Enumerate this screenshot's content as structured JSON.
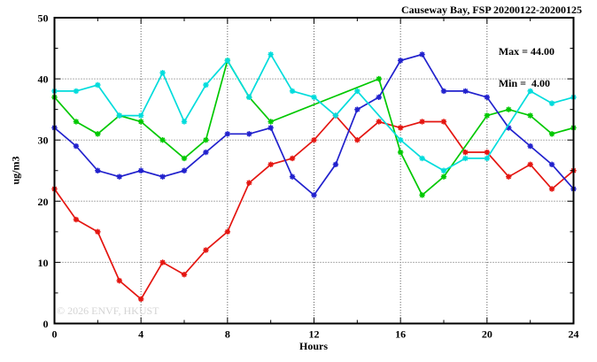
{
  "annotation": {
    "max_label": "Max = 44.00",
    "min_label": "Min =  4.00"
  },
  "watermark": "© 2026 ENVF, HKUST",
  "chart_data": {
    "type": "line",
    "title": "Causeway Bay, FSP 20200122-20200125",
    "xlabel": "Hours",
    "ylabel": "ug/m3",
    "xlim": [
      0,
      24
    ],
    "ylim": [
      0,
      50
    ],
    "xticks": [
      0,
      4,
      8,
      12,
      16,
      20,
      24
    ],
    "x_minor_step": 2,
    "yticks": [
      0,
      10,
      20,
      30,
      40,
      50
    ],
    "y_minor_step": 5,
    "grid": true,
    "legend_position": "none",
    "marker_style": "asterisk",
    "x": [
      0,
      1,
      2,
      3,
      4,
      5,
      6,
      7,
      8,
      9,
      10,
      11,
      12,
      13,
      14,
      15,
      16,
      17,
      18,
      19,
      20,
      21,
      22,
      23,
      24
    ],
    "series": [
      {
        "name": "red-line",
        "color": "#e41510",
        "values": [
          22,
          17,
          15,
          7,
          4,
          10,
          8,
          12,
          15,
          23,
          26,
          27,
          30,
          34,
          30,
          33,
          32,
          33,
          33,
          28,
          28,
          24,
          26,
          22,
          25
        ]
      },
      {
        "name": "green-line",
        "color": "#00c800",
        "values": [
          37,
          33,
          31,
          34,
          33,
          30,
          27,
          30,
          43,
          37,
          33,
          null,
          null,
          null,
          null,
          40,
          28,
          21,
          24,
          null,
          34,
          35,
          34,
          31,
          32
        ]
      },
      {
        "name": "blue-line",
        "color": "#2121cd",
        "values": [
          32,
          29,
          25,
          24,
          25,
          24,
          25,
          28,
          31,
          31,
          32,
          24,
          21,
          26,
          35,
          37,
          43,
          44,
          38,
          38,
          37,
          32,
          29,
          26,
          22
        ]
      },
      {
        "name": "cyan-line",
        "color": "#00dcdc",
        "values": [
          38,
          38,
          39,
          34,
          34,
          41,
          33,
          39,
          43,
          37,
          44,
          38,
          37,
          34,
          38,
          null,
          30,
          27,
          25,
          27,
          27,
          null,
          38,
          36,
          37
        ]
      }
    ],
    "stats": {
      "max": 44.0,
      "min": 4.0
    }
  }
}
